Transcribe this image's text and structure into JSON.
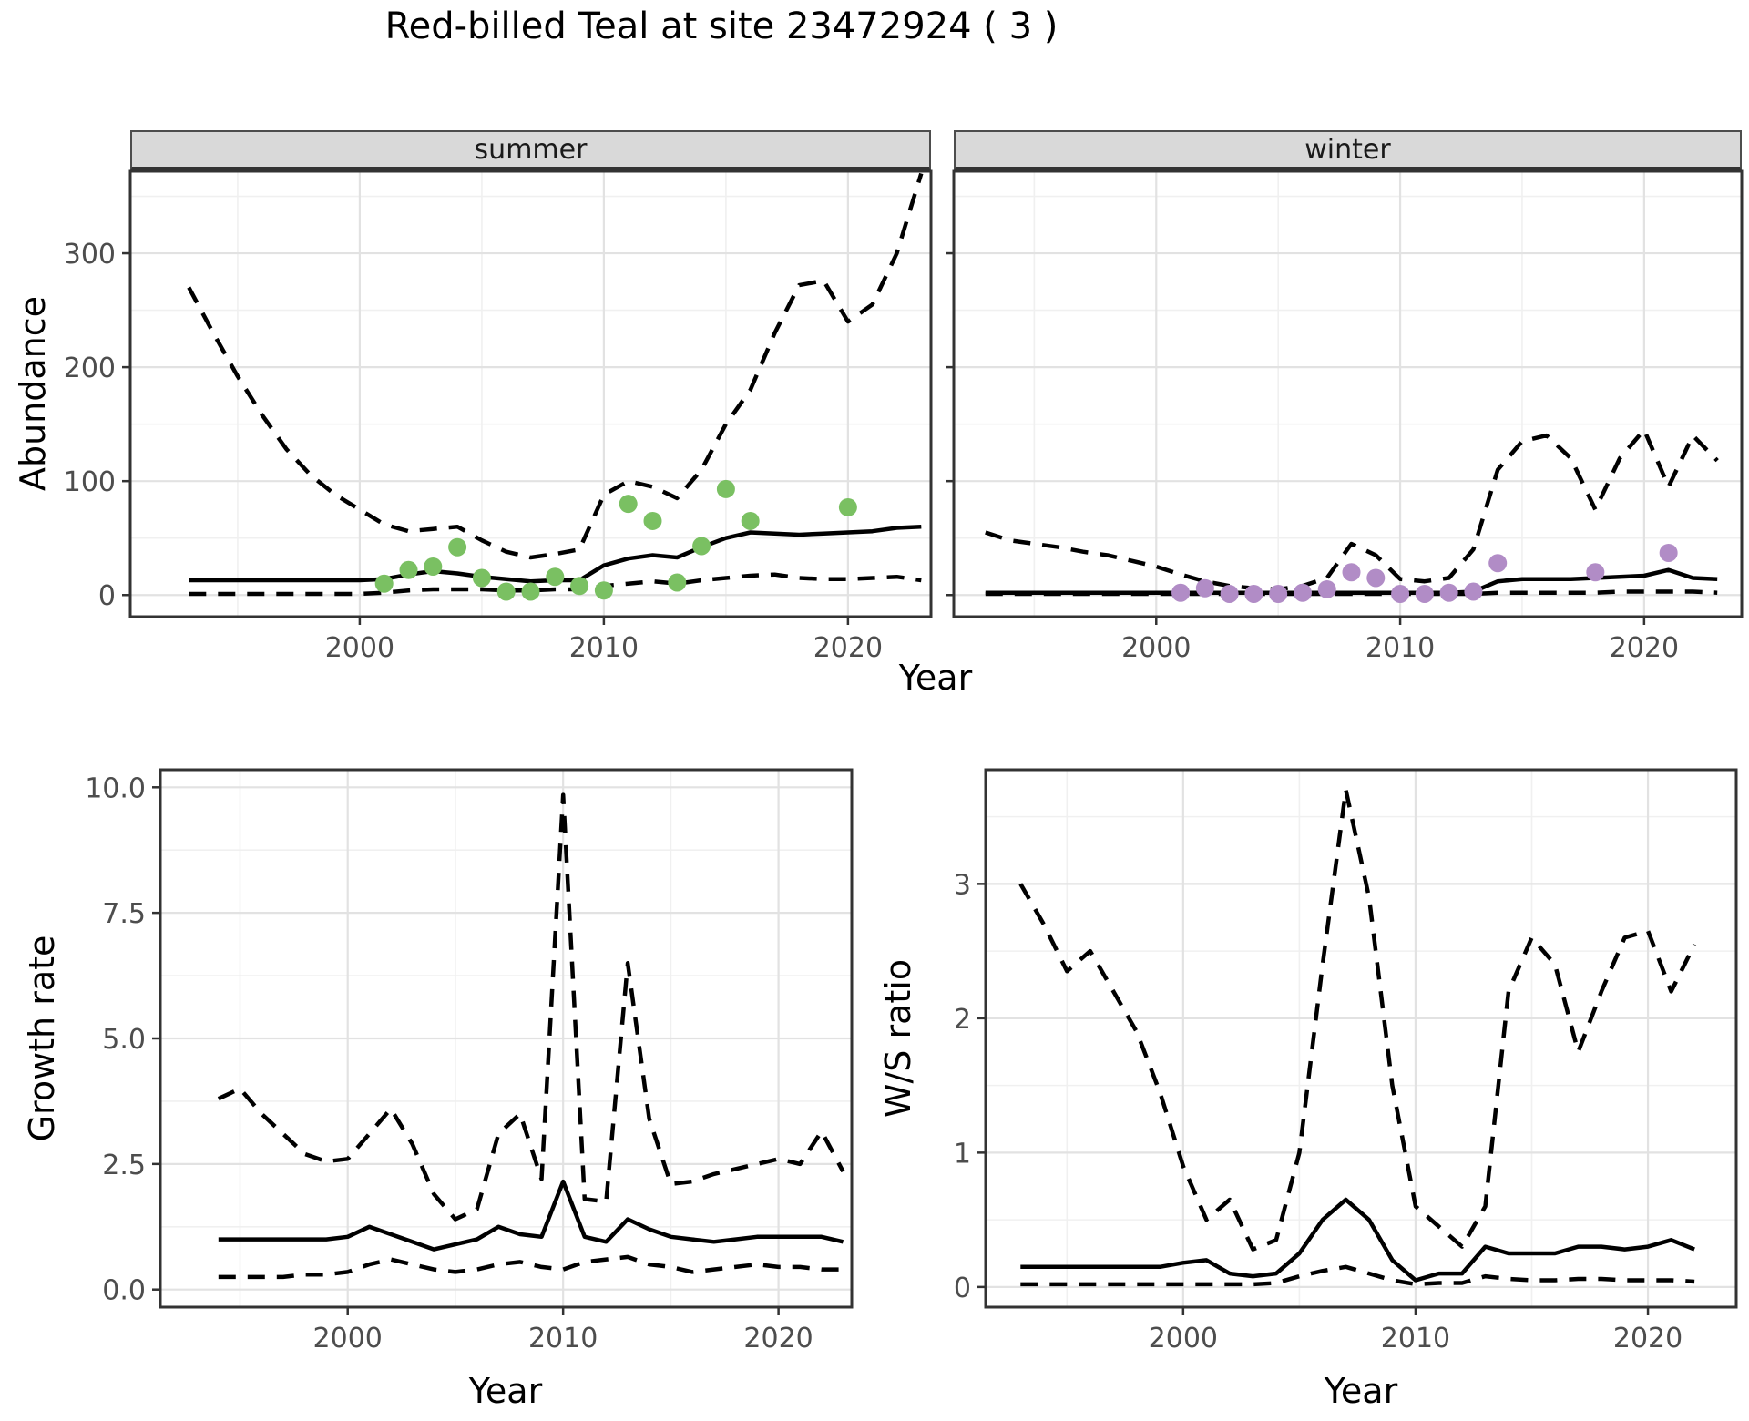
{
  "title": "Red-billed Teal at site 23472924 ( 3 )",
  "labels": {
    "y_top": "Abundance",
    "x_shared": "Year",
    "y_growth": "Growth rate",
    "x_growth": "Year",
    "y_ws": "W/S ratio",
    "x_ws": "Year"
  },
  "colors": {
    "summer_points": "#7ac062",
    "winter_points": "#b18cc6",
    "line": "#000000",
    "strip_bg": "#d9d9d9",
    "panel_border": "#333333",
    "grid_major": "#e2e2e2",
    "grid_minor": "#f0f0f0",
    "tick_text": "#4d4d4d",
    "background": "#ffffff"
  },
  "chart_data": [
    {
      "id": "abundance_summer",
      "type": "line",
      "facet_label": "summer",
      "ylabel": "Abundance",
      "xlabel": "Year",
      "x_ticks": [
        2000,
        2010,
        2020
      ],
      "y_ticks": [
        0,
        100,
        200,
        300
      ],
      "xlim": [
        1990.6,
        2023.4
      ],
      "ylim": [
        -19,
        372
      ],
      "show_y_tick_labels": true,
      "grid": true,
      "years": [
        1993,
        1994,
        1995,
        1996,
        1997,
        1998,
        1999,
        2000,
        2001,
        2002,
        2003,
        2004,
        2005,
        2006,
        2007,
        2008,
        2009,
        2010,
        2011,
        2012,
        2013,
        2014,
        2015,
        2016,
        2017,
        2018,
        2019,
        2020,
        2021,
        2022,
        2023
      ],
      "series": [
        {
          "name": "upper95CI",
          "style": "dashed",
          "values": [
            270,
            230,
            192,
            158,
            128,
            105,
            88,
            75,
            62,
            56,
            58,
            60,
            48,
            38,
            33,
            36,
            40,
            88,
            100,
            95,
            85,
            110,
            150,
            180,
            230,
            272,
            276,
            240,
            255,
            300,
            370
          ]
        },
        {
          "name": "mean",
          "style": "solid",
          "values": [
            13,
            13,
            13,
            13,
            13,
            13,
            13,
            13,
            14,
            18,
            21,
            19,
            16,
            14,
            12,
            13,
            13,
            26,
            32,
            35,
            33,
            42,
            50,
            55,
            54,
            53,
            54,
            55,
            56,
            59,
            60
          ]
        },
        {
          "name": "lower95CI",
          "style": "dashed",
          "values": [
            1,
            1,
            1,
            1,
            1,
            1,
            1,
            1,
            2,
            4,
            5,
            5,
            5,
            4,
            4,
            5,
            5,
            8,
            10,
            12,
            10,
            13,
            15,
            17,
            18,
            15,
            14,
            14,
            15,
            16,
            13
          ]
        }
      ],
      "points": {
        "color": "#7ac062",
        "years": [
          2001,
          2002,
          2003,
          2004,
          2005,
          2006,
          2007,
          2008,
          2009,
          2010,
          2011,
          2012,
          2013,
          2014,
          2015,
          2016,
          2020
        ],
        "values": [
          10,
          22,
          25,
          42,
          15,
          3,
          3,
          16,
          8,
          4,
          80,
          65,
          11,
          43,
          93,
          65,
          77
        ]
      }
    },
    {
      "id": "abundance_winter",
      "type": "line",
      "facet_label": "winter",
      "ylabel": "Abundance",
      "xlabel": "Year",
      "x_ticks": [
        2000,
        2010,
        2020
      ],
      "y_ticks": [
        0,
        100,
        200,
        300
      ],
      "xlim": [
        1991.7,
        2024.0
      ],
      "ylim": [
        -19,
        372
      ],
      "show_y_tick_labels": false,
      "grid": true,
      "years": [
        1993,
        1994,
        1995,
        1996,
        1997,
        1998,
        1999,
        2000,
        2001,
        2002,
        2003,
        2004,
        2005,
        2006,
        2007,
        2008,
        2009,
        2010,
        2011,
        2012,
        2013,
        2014,
        2015,
        2016,
        2017,
        2018,
        2019,
        2020,
        2021,
        2022,
        2023
      ],
      "series": [
        {
          "name": "upper95CI",
          "style": "dashed",
          "values": [
            55,
            48,
            45,
            42,
            38,
            35,
            30,
            25,
            18,
            12,
            8,
            6,
            5,
            8,
            15,
            45,
            35,
            14,
            12,
            15,
            40,
            110,
            135,
            140,
            120,
            75,
            120,
            145,
            95,
            140,
            118
          ]
        },
        {
          "name": "mean",
          "style": "solid",
          "values": [
            2,
            2,
            2,
            2,
            2,
            2,
            2,
            2,
            2,
            2,
            2,
            2,
            2,
            2,
            2,
            2,
            2,
            2,
            2,
            2,
            3,
            12,
            14,
            14,
            14,
            15,
            16,
            17,
            22,
            15,
            14
          ]
        },
        {
          "name": "lower95CI",
          "style": "dashed",
          "values": [
            1,
            1,
            1,
            1,
            1,
            1,
            1,
            1,
            1,
            1,
            1,
            1,
            1,
            1,
            1,
            1,
            1,
            1,
            1,
            1,
            1,
            2,
            2,
            2,
            2,
            2,
            3,
            3,
            3,
            3,
            2
          ]
        }
      ],
      "points": {
        "color": "#b18cc6",
        "years": [
          2001,
          2002,
          2003,
          2004,
          2005,
          2006,
          2007,
          2008,
          2009,
          2010,
          2011,
          2012,
          2013,
          2014,
          2018,
          2021
        ],
        "values": [
          2,
          6,
          1,
          1,
          1,
          2,
          5,
          20,
          15,
          1,
          1,
          2,
          3,
          28,
          20,
          37
        ]
      }
    },
    {
      "id": "growth_rate",
      "type": "line",
      "facet_label": "",
      "ylabel": "Growth rate",
      "xlabel": "Year",
      "x_ticks": [
        2000,
        2010,
        2020
      ],
      "y_ticks": [
        0,
        2.5,
        5,
        7.5,
        10
      ],
      "y_tick_labels": [
        "0.0",
        "2.5",
        "5.0",
        "7.5",
        "10.0"
      ],
      "xlim": [
        1991.3,
        2023.4
      ],
      "ylim": [
        -0.35,
        10.35
      ],
      "show_y_tick_labels": true,
      "grid": true,
      "years": [
        1994,
        1995,
        1996,
        1997,
        1998,
        1999,
        2000,
        2001,
        2002,
        2003,
        2004,
        2005,
        2006,
        2007,
        2008,
        2009,
        2010,
        2011,
        2012,
        2013,
        2014,
        2015,
        2016,
        2017,
        2018,
        2019,
        2020,
        2021,
        2022,
        2023
      ],
      "series": [
        {
          "name": "upper95CI",
          "style": "dashed",
          "values": [
            3.8,
            4.0,
            3.5,
            3.1,
            2.7,
            2.55,
            2.6,
            3.1,
            3.6,
            2.9,
            1.9,
            1.4,
            1.6,
            3.1,
            3.5,
            2.2,
            9.85,
            1.8,
            1.75,
            6.5,
            3.4,
            2.1,
            2.15,
            2.3,
            2.4,
            2.5,
            2.6,
            2.5,
            3.15,
            2.35
          ]
        },
        {
          "name": "mean",
          "style": "solid",
          "values": [
            1.0,
            1.0,
            1.0,
            1.0,
            1.0,
            1.0,
            1.05,
            1.25,
            1.1,
            0.95,
            0.8,
            0.9,
            1.0,
            1.25,
            1.1,
            1.05,
            2.15,
            1.05,
            0.95,
            1.4,
            1.2,
            1.05,
            1.0,
            0.95,
            1.0,
            1.05,
            1.05,
            1.05,
            1.05,
            0.95
          ]
        },
        {
          "name": "lower95CI",
          "style": "dashed",
          "values": [
            0.25,
            0.25,
            0.25,
            0.25,
            0.3,
            0.3,
            0.35,
            0.5,
            0.6,
            0.5,
            0.4,
            0.35,
            0.4,
            0.5,
            0.55,
            0.45,
            0.4,
            0.55,
            0.6,
            0.65,
            0.5,
            0.45,
            0.35,
            0.4,
            0.45,
            0.5,
            0.45,
            0.45,
            0.4,
            0.4
          ]
        }
      ],
      "points": {
        "color": "",
        "years": [],
        "values": []
      }
    },
    {
      "id": "ws_ratio",
      "type": "line",
      "facet_label": "",
      "ylabel": "W/S ratio",
      "xlabel": "Year",
      "x_ticks": [
        2000,
        2010,
        2020
      ],
      "y_ticks": [
        0,
        1,
        2,
        3
      ],
      "xlim": [
        1991.5,
        2023.8
      ],
      "ylim": [
        -0.15,
        3.85
      ],
      "show_y_tick_labels": true,
      "grid": true,
      "years": [
        1993,
        1994,
        1995,
        1996,
        1997,
        1998,
        1999,
        2000,
        2001,
        2002,
        2003,
        2004,
        2005,
        2006,
        2007,
        2008,
        2009,
        2010,
        2011,
        2012,
        2013,
        2014,
        2015,
        2016,
        2017,
        2018,
        2019,
        2020,
        2021,
        2022
      ],
      "series": [
        {
          "name": "upper95CI",
          "style": "dashed",
          "values": [
            3.0,
            2.7,
            2.35,
            2.5,
            2.2,
            1.9,
            1.45,
            0.9,
            0.5,
            0.65,
            0.28,
            0.35,
            1.0,
            2.4,
            3.7,
            2.9,
            1.5,
            0.6,
            0.45,
            0.3,
            0.6,
            2.2,
            2.6,
            2.4,
            1.75,
            2.2,
            2.6,
            2.65,
            2.2,
            2.55
          ]
        },
        {
          "name": "mean",
          "style": "solid",
          "values": [
            0.15,
            0.15,
            0.15,
            0.15,
            0.15,
            0.15,
            0.15,
            0.18,
            0.2,
            0.1,
            0.08,
            0.1,
            0.25,
            0.5,
            0.65,
            0.5,
            0.2,
            0.05,
            0.1,
            0.1,
            0.3,
            0.25,
            0.25,
            0.25,
            0.3,
            0.3,
            0.28,
            0.3,
            0.35,
            0.28
          ]
        },
        {
          "name": "lower95CI",
          "style": "dashed",
          "values": [
            0.02,
            0.02,
            0.02,
            0.02,
            0.02,
            0.02,
            0.02,
            0.02,
            0.02,
            0.02,
            0.02,
            0.03,
            0.08,
            0.12,
            0.15,
            0.1,
            0.05,
            0.02,
            0.03,
            0.03,
            0.08,
            0.06,
            0.05,
            0.05,
            0.06,
            0.06,
            0.05,
            0.05,
            0.05,
            0.04
          ]
        }
      ],
      "points": {
        "color": "",
        "years": [],
        "values": []
      }
    }
  ]
}
